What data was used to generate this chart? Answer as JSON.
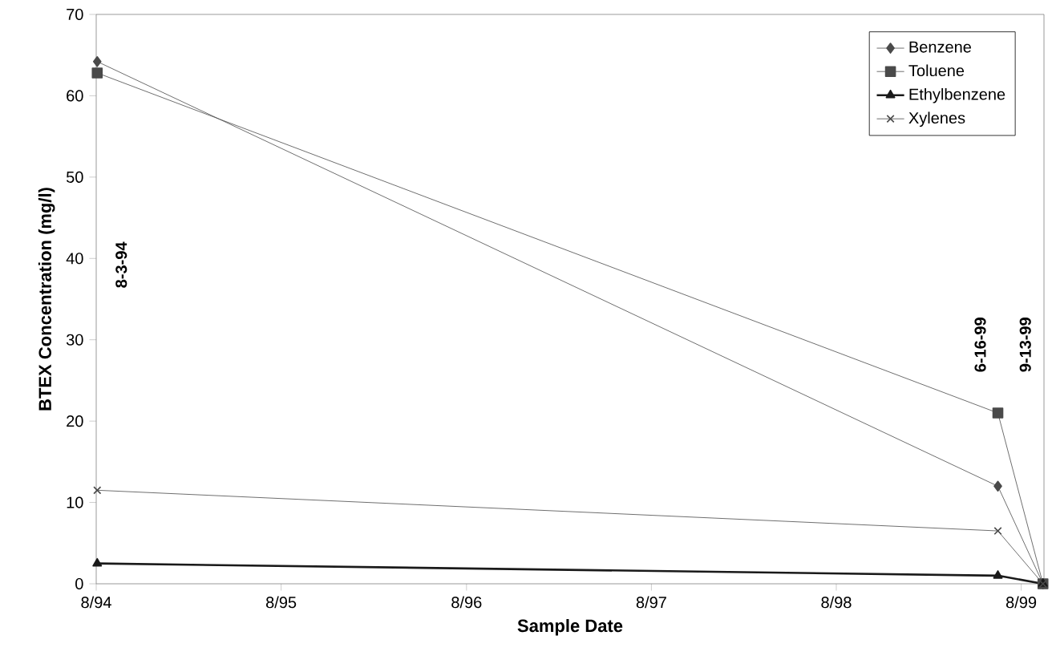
{
  "chart_data": {
    "type": "line",
    "xlabel": "Sample Date",
    "ylabel": "BTEX Concentration (mg/l)",
    "x": [
      "1994-08-03",
      "1999-06-16",
      "1999-09-13"
    ],
    "series": [
      {
        "name": "Benzene",
        "color": "#4a4a4a",
        "marker": "diamond",
        "values": [
          64.2,
          12,
          0
        ]
      },
      {
        "name": "Toluene",
        "color": "#4a4a4a",
        "marker": "square",
        "values": [
          62.8,
          21,
          0
        ]
      },
      {
        "name": "Ethylbenzene",
        "color": "#1a1a1a",
        "marker": "triangle",
        "values": [
          2.5,
          1,
          0
        ]
      },
      {
        "name": "Xylenes",
        "color": "#4a4a4a",
        "marker": "cross",
        "values": [
          11.5,
          6.5,
          0
        ]
      }
    ],
    "xlim": [
      "1994-08-01",
      "1999-09-15"
    ],
    "xticks": [
      {
        "value": "1994-08-01",
        "label": "8/94"
      },
      {
        "value": "1995-08-01",
        "label": "8/95"
      },
      {
        "value": "1996-08-01",
        "label": "8/96"
      },
      {
        "value": "1997-08-01",
        "label": "8/97"
      },
      {
        "value": "1998-08-01",
        "label": "8/98"
      },
      {
        "value": "1999-08-01",
        "label": "8/99"
      }
    ],
    "ylim": [
      0,
      70
    ],
    "yticks": [
      0,
      10,
      20,
      30,
      40,
      50,
      60,
      70
    ],
    "legend": "top right",
    "grid": false,
    "line_style": "solid",
    "annotations": [
      "8-3-94",
      "6-16-99",
      "9-13-99"
    ]
  }
}
